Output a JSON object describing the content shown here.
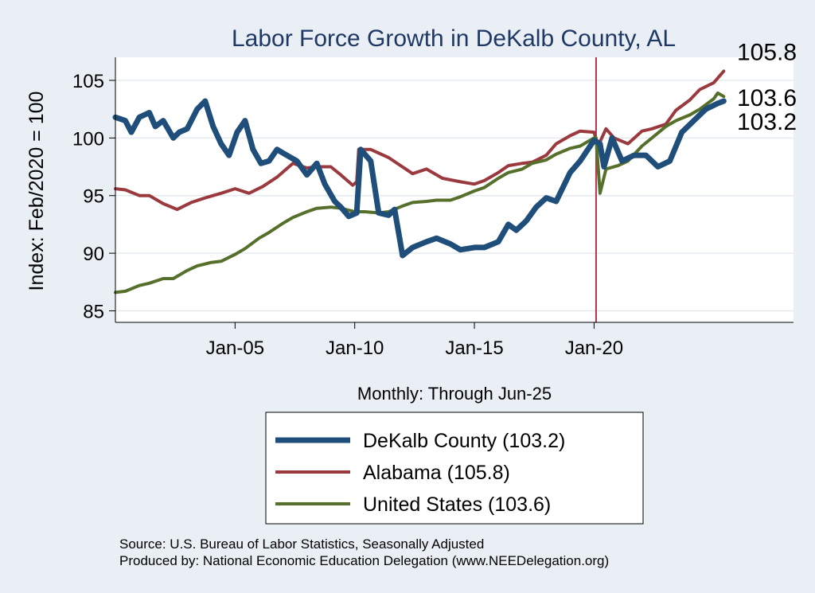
{
  "chart_data": {
    "type": "line",
    "title": "Labor Force Growth in DeKalb  County, AL",
    "ylabel": "Index: Feb/2020 = 100",
    "xlabel": "Monthly: Through Jun-25",
    "x_start": "2000-01",
    "x_end": "2025-06",
    "xlim": [
      "2000-01",
      "2028-05"
    ],
    "ylim": [
      84,
      107
    ],
    "y_ticks": [
      85,
      90,
      95,
      100,
      105
    ],
    "x_ticks": [
      {
        "label": "Jan-05",
        "date": "2005-01"
      },
      {
        "label": "Jan-10",
        "date": "2010-01"
      },
      {
        "label": "Jan-15",
        "date": "2015-01"
      },
      {
        "label": "Jan-20",
        "date": "2020-01"
      }
    ],
    "reference_line": {
      "date": "2020-02",
      "color": "#b5314a"
    },
    "grid": true,
    "legend_position": "bottom-center",
    "end_labels": [
      "105.8",
      "103.6",
      "103.2"
    ],
    "series": [
      {
        "name": "DeKalb  County (103.2)",
        "color": "#1e4e79",
        "points": [
          [
            "2000-01",
            101.8
          ],
          [
            "2000-06",
            101.5
          ],
          [
            "2000-09",
            100.5
          ],
          [
            "2001-01",
            101.8
          ],
          [
            "2001-06",
            102.2
          ],
          [
            "2001-09",
            101.0
          ],
          [
            "2002-01",
            101.5
          ],
          [
            "2002-06",
            100.0
          ],
          [
            "2002-09",
            100.5
          ],
          [
            "2003-01",
            100.8
          ],
          [
            "2003-06",
            102.5
          ],
          [
            "2003-10",
            103.2
          ],
          [
            "2004-02",
            101.0
          ],
          [
            "2004-06",
            99.5
          ],
          [
            "2004-10",
            98.5
          ],
          [
            "2005-02",
            100.5
          ],
          [
            "2005-06",
            101.5
          ],
          [
            "2005-10",
            99.0
          ],
          [
            "2006-02",
            97.8
          ],
          [
            "2006-06",
            98.0
          ],
          [
            "2006-10",
            99.0
          ],
          [
            "2007-03",
            98.5
          ],
          [
            "2007-08",
            98.0
          ],
          [
            "2008-01",
            96.8
          ],
          [
            "2008-06",
            97.8
          ],
          [
            "2008-10",
            96.0
          ],
          [
            "2009-03",
            94.5
          ],
          [
            "2009-06",
            94.0
          ],
          [
            "2009-10",
            93.2
          ],
          [
            "2010-02",
            93.5
          ],
          [
            "2010-04",
            99.0
          ],
          [
            "2010-09",
            98.0
          ],
          [
            "2011-01",
            93.5
          ],
          [
            "2011-06",
            93.3
          ],
          [
            "2011-09",
            93.8
          ],
          [
            "2012-01",
            89.8
          ],
          [
            "2012-06",
            90.5
          ],
          [
            "2013-01",
            91.0
          ],
          [
            "2013-06",
            91.3
          ],
          [
            "2014-01",
            90.8
          ],
          [
            "2014-06",
            90.3
          ],
          [
            "2015-01",
            90.5
          ],
          [
            "2015-06",
            90.5
          ],
          [
            "2016-01",
            91.0
          ],
          [
            "2016-06",
            92.5
          ],
          [
            "2016-10",
            92.0
          ],
          [
            "2017-03",
            92.8
          ],
          [
            "2017-08",
            94.0
          ],
          [
            "2018-01",
            94.8
          ],
          [
            "2018-06",
            94.5
          ],
          [
            "2019-01",
            97.0
          ],
          [
            "2019-06",
            98.0
          ],
          [
            "2020-01",
            99.8
          ],
          [
            "2020-04",
            99.5
          ],
          [
            "2020-06",
            97.5
          ],
          [
            "2020-10",
            100.0
          ],
          [
            "2021-03",
            98.0
          ],
          [
            "2021-09",
            98.5
          ],
          [
            "2022-03",
            98.5
          ],
          [
            "2022-09",
            97.5
          ],
          [
            "2023-03",
            98.0
          ],
          [
            "2023-09",
            100.5
          ],
          [
            "2024-03",
            101.5
          ],
          [
            "2024-09",
            102.5
          ],
          [
            "2025-03",
            103.0
          ],
          [
            "2025-06",
            103.2
          ]
        ]
      },
      {
        "name": "Alabama (105.8)",
        "color": "#9b3a3e",
        "points": [
          [
            "2000-01",
            95.6
          ],
          [
            "2000-06",
            95.5
          ],
          [
            "2001-01",
            95.0
          ],
          [
            "2001-06",
            95.0
          ],
          [
            "2002-01",
            94.3
          ],
          [
            "2002-08",
            93.8
          ],
          [
            "2003-03",
            94.4
          ],
          [
            "2003-10",
            94.8
          ],
          [
            "2004-06",
            95.2
          ],
          [
            "2005-01",
            95.6
          ],
          [
            "2005-08",
            95.2
          ],
          [
            "2006-03",
            95.8
          ],
          [
            "2006-10",
            96.6
          ],
          [
            "2007-06",
            97.8
          ],
          [
            "2008-01",
            97.4
          ],
          [
            "2008-06",
            97.5
          ],
          [
            "2009-01",
            97.5
          ],
          [
            "2009-06",
            96.8
          ],
          [
            "2009-12",
            95.9
          ],
          [
            "2010-02",
            96.2
          ],
          [
            "2010-03",
            99.0
          ],
          [
            "2010-09",
            99.0
          ],
          [
            "2011-06",
            98.3
          ],
          [
            "2012-06",
            96.9
          ],
          [
            "2013-01",
            97.3
          ],
          [
            "2013-09",
            96.5
          ],
          [
            "2014-06",
            96.2
          ],
          [
            "2015-01",
            96.0
          ],
          [
            "2015-06",
            96.3
          ],
          [
            "2016-01",
            97.0
          ],
          [
            "2016-06",
            97.6
          ],
          [
            "2017-01",
            97.8
          ],
          [
            "2017-06",
            97.9
          ],
          [
            "2018-01",
            98.5
          ],
          [
            "2018-06",
            99.5
          ],
          [
            "2019-01",
            100.2
          ],
          [
            "2019-06",
            100.6
          ],
          [
            "2020-01",
            100.5
          ],
          [
            "2020-03",
            99.3
          ],
          [
            "2020-07",
            100.8
          ],
          [
            "2020-11",
            100.0
          ],
          [
            "2021-06",
            99.5
          ],
          [
            "2022-01",
            100.6
          ],
          [
            "2022-06",
            100.8
          ],
          [
            "2023-01",
            101.2
          ],
          [
            "2023-06",
            102.4
          ],
          [
            "2024-01",
            103.3
          ],
          [
            "2024-06",
            104.2
          ],
          [
            "2025-01",
            104.8
          ],
          [
            "2025-06",
            105.8
          ]
        ]
      },
      {
        "name": "United States (103.6)",
        "color": "#56702b",
        "points": [
          [
            "2000-01",
            86.6
          ],
          [
            "2000-06",
            86.7
          ],
          [
            "2001-01",
            87.2
          ],
          [
            "2001-06",
            87.4
          ],
          [
            "2002-01",
            87.8
          ],
          [
            "2002-06",
            87.8
          ],
          [
            "2003-01",
            88.5
          ],
          [
            "2003-06",
            88.9
          ],
          [
            "2004-01",
            89.2
          ],
          [
            "2004-06",
            89.3
          ],
          [
            "2005-01",
            89.9
          ],
          [
            "2005-06",
            90.4
          ],
          [
            "2006-01",
            91.3
          ],
          [
            "2006-06",
            91.8
          ],
          [
            "2007-01",
            92.6
          ],
          [
            "2007-06",
            93.1
          ],
          [
            "2008-01",
            93.6
          ],
          [
            "2008-06",
            93.9
          ],
          [
            "2009-01",
            94.0
          ],
          [
            "2009-06",
            93.9
          ],
          [
            "2010-01",
            93.6
          ],
          [
            "2010-06",
            93.6
          ],
          [
            "2011-01",
            93.5
          ],
          [
            "2011-06",
            93.6
          ],
          [
            "2012-01",
            94.1
          ],
          [
            "2012-06",
            94.4
          ],
          [
            "2013-01",
            94.5
          ],
          [
            "2013-06",
            94.6
          ],
          [
            "2014-01",
            94.6
          ],
          [
            "2014-06",
            94.9
          ],
          [
            "2015-01",
            95.4
          ],
          [
            "2015-06",
            95.7
          ],
          [
            "2016-01",
            96.5
          ],
          [
            "2016-06",
            97.0
          ],
          [
            "2017-01",
            97.3
          ],
          [
            "2017-06",
            97.8
          ],
          [
            "2018-01",
            98.1
          ],
          [
            "2018-06",
            98.6
          ],
          [
            "2019-01",
            99.1
          ],
          [
            "2019-06",
            99.3
          ],
          [
            "2020-01",
            100.0
          ],
          [
            "2020-02",
            100.0
          ],
          [
            "2020-04",
            95.2
          ],
          [
            "2020-07",
            97.3
          ],
          [
            "2021-01",
            97.6
          ],
          [
            "2021-06",
            98.0
          ],
          [
            "2022-01",
            99.3
          ],
          [
            "2022-06",
            100.0
          ],
          [
            "2023-01",
            101.0
          ],
          [
            "2023-06",
            101.5
          ],
          [
            "2024-01",
            102.0
          ],
          [
            "2024-06",
            102.5
          ],
          [
            "2025-01",
            103.4
          ],
          [
            "2025-03",
            103.9
          ],
          [
            "2025-06",
            103.6
          ]
        ]
      }
    ]
  },
  "footer": {
    "source_line": "Source: U.S. Bureau of Labor Statistics, Seasonally Adjusted",
    "produced_line": "Produced by: National Economic Education Delegation (www.NEEDelegation.org)"
  }
}
